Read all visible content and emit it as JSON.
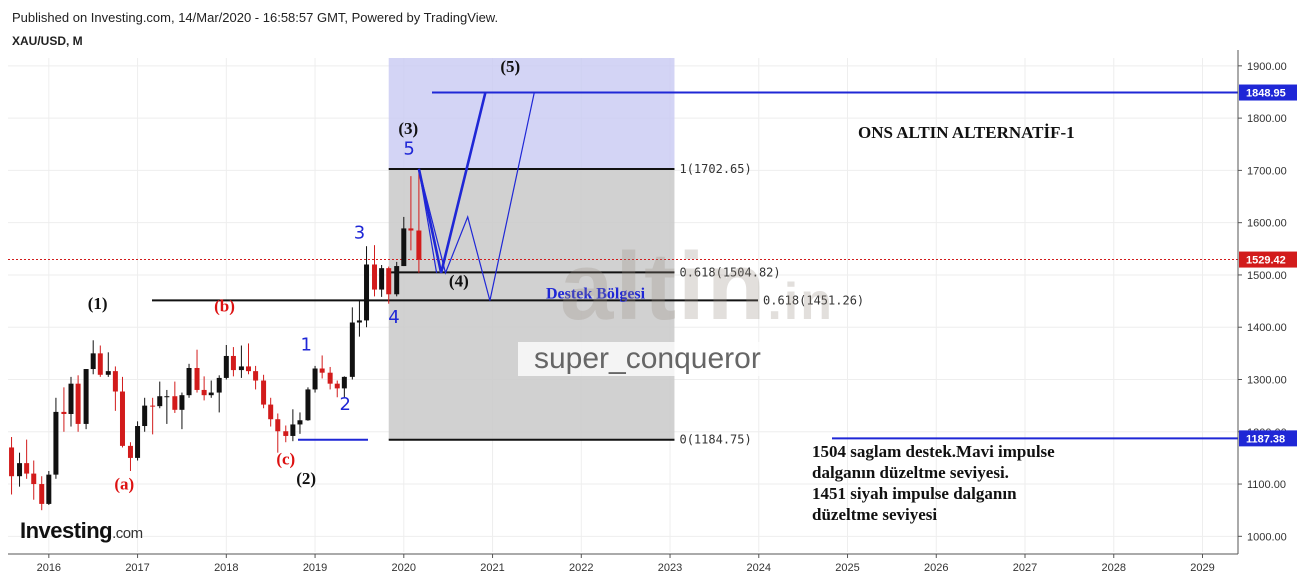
{
  "header": {
    "published": "Published on Investing.com, 14/Mar/2020 - 16:58:57 GMT, Powered by TradingView.",
    "symbol": "XAU/USD, M"
  },
  "brand": {
    "name": "Investing",
    "domain": ".com"
  },
  "watermark": {
    "user": "super_conqueror",
    "logo": "altin",
    "logo_suffix": ".in"
  },
  "annotations": {
    "title": "ONS ALTIN ALTERNATİF-1",
    "zone_label": "Destek Bölgesi",
    "note": [
      "1504 saglam destek.Mavi impulse",
      "dalganın düzeltme seviyesi.",
      "1451 siyah impulse dalganın",
      "düzeltme seviyesi"
    ],
    "waves": [
      {
        "label": "(1)",
        "date": 2016.55,
        "price": 1435,
        "color": "#111111"
      },
      {
        "label": "(2)",
        "date": 2018.9,
        "price": 1100,
        "color": "#111111"
      },
      {
        "label": "(3)",
        "date": 2020.05,
        "price": 1770,
        "color": "#111111"
      },
      {
        "label": "(4)",
        "date": 2020.62,
        "price": 1478,
        "color": "#111111"
      },
      {
        "label": "(5)",
        "date": 2021.2,
        "price": 1888,
        "color": "#111111"
      },
      {
        "label": "(a)",
        "date": 2016.85,
        "price": 1090,
        "color": "#dd1111"
      },
      {
        "label": "(b)",
        "date": 2017.98,
        "price": 1430,
        "color": "#dd1111"
      },
      {
        "label": "(c)",
        "date": 2018.67,
        "price": 1137,
        "color": "#dd1111"
      },
      {
        "label": "1",
        "date": 2018.9,
        "price": 1355,
        "color": "#1f27d6"
      },
      {
        "label": "2",
        "date": 2019.34,
        "price": 1242,
        "color": "#1f27d6"
      },
      {
        "label": "3",
        "date": 2019.5,
        "price": 1570,
        "color": "#1f27d6"
      },
      {
        "label": "4",
        "date": 2019.89,
        "price": 1408,
        "color": "#1f27d6"
      },
      {
        "label": "5",
        "date": 2020.06,
        "price": 1730,
        "color": "#1f27d6"
      }
    ]
  },
  "chart_data": {
    "type": "candlestick",
    "instrument": "XAU/USD",
    "interval": "M",
    "x_ticks": [
      "2016",
      "2017",
      "2018",
      "2019",
      "2020",
      "2021",
      "2022",
      "2023",
      "2024",
      "2025",
      "2026",
      "2027",
      "2028",
      "2029"
    ],
    "y_ticks": [
      "1000.00",
      "1100.00",
      "1200.00",
      "1300.00",
      "1400.00",
      "1500.00",
      "1600.00",
      "1700.00",
      "1800.00",
      "1900.00"
    ],
    "xlim": [
      2015.54,
      2029.4
    ],
    "ylim": [
      970,
      1915
    ],
    "current_price": "1529.42",
    "target_price": "1848.95",
    "support_price": "1187.38",
    "fib_levels": [
      {
        "label": "1(1702.65)",
        "value": 1702.65
      },
      {
        "label": "0.618(1504.82)",
        "value": 1504.82
      },
      {
        "label": "0.618(1451.26)",
        "value": 1451.26
      },
      {
        "label": "0(1184.75)",
        "value": 1184.75
      }
    ],
    "fib_zone": {
      "x_start": 2019.83,
      "x_end": 2023.05,
      "low": 1184.75,
      "high": 1702.65
    },
    "target_zone": {
      "x_start": 2019.83,
      "x_end": 2023.05,
      "low": 1702.65,
      "high": 1915
    },
    "colors": {
      "up": "#111111",
      "down": "#d21b1b",
      "wave_blue": "#1f27d6",
      "fib_zone": "#c9c9c9",
      "target_zone": "#c8c9f2",
      "price_line": "#d21b1b",
      "level_line": "#1f27d6"
    },
    "candles": [
      {
        "t": 2015.58,
        "o": 1170,
        "h": 1190,
        "l": 1080,
        "c": 1115
      },
      {
        "t": 2015.67,
        "o": 1115,
        "h": 1160,
        "l": 1095,
        "c": 1140
      },
      {
        "t": 2015.75,
        "o": 1140,
        "h": 1185,
        "l": 1110,
        "c": 1120
      },
      {
        "t": 2015.83,
        "o": 1120,
        "h": 1145,
        "l": 1070,
        "c": 1100
      },
      {
        "t": 2015.92,
        "o": 1100,
        "h": 1115,
        "l": 1050,
        "c": 1062
      },
      {
        "t": 2016.0,
        "o": 1062,
        "h": 1125,
        "l": 1060,
        "c": 1118
      },
      {
        "t": 2016.08,
        "o": 1118,
        "h": 1265,
        "l": 1110,
        "c": 1238
      },
      {
        "t": 2016.17,
        "o": 1238,
        "h": 1285,
        "l": 1200,
        "c": 1234
      },
      {
        "t": 2016.25,
        "o": 1234,
        "h": 1305,
        "l": 1210,
        "c": 1292
      },
      {
        "t": 2016.33,
        "o": 1292,
        "h": 1308,
        "l": 1200,
        "c": 1215
      },
      {
        "t": 2016.42,
        "o": 1215,
        "h": 1320,
        "l": 1205,
        "c": 1320
      },
      {
        "t": 2016.5,
        "o": 1320,
        "h": 1375,
        "l": 1310,
        "c": 1350
      },
      {
        "t": 2016.58,
        "o": 1350,
        "h": 1365,
        "l": 1305,
        "c": 1309
      },
      {
        "t": 2016.67,
        "o": 1309,
        "h": 1352,
        "l": 1305,
        "c": 1316
      },
      {
        "t": 2016.75,
        "o": 1316,
        "h": 1325,
        "l": 1240,
        "c": 1277
      },
      {
        "t": 2016.83,
        "o": 1277,
        "h": 1305,
        "l": 1170,
        "c": 1173
      },
      {
        "t": 2016.92,
        "o": 1173,
        "h": 1180,
        "l": 1125,
        "c": 1150
      },
      {
        "t": 2017.0,
        "o": 1150,
        "h": 1220,
        "l": 1145,
        "c": 1211
      },
      {
        "t": 2017.08,
        "o": 1211,
        "h": 1265,
        "l": 1200,
        "c": 1250
      },
      {
        "t": 2017.17,
        "o": 1250,
        "h": 1265,
        "l": 1195,
        "c": 1249
      },
      {
        "t": 2017.25,
        "o": 1249,
        "h": 1296,
        "l": 1245,
        "c": 1268
      },
      {
        "t": 2017.33,
        "o": 1268,
        "h": 1280,
        "l": 1215,
        "c": 1268
      },
      {
        "t": 2017.42,
        "o": 1268,
        "h": 1296,
        "l": 1236,
        "c": 1242
      },
      {
        "t": 2017.5,
        "o": 1242,
        "h": 1275,
        "l": 1205,
        "c": 1270
      },
      {
        "t": 2017.58,
        "o": 1270,
        "h": 1330,
        "l": 1265,
        "c": 1322
      },
      {
        "t": 2017.67,
        "o": 1322,
        "h": 1357,
        "l": 1275,
        "c": 1280
      },
      {
        "t": 2017.75,
        "o": 1280,
        "h": 1306,
        "l": 1260,
        "c": 1270
      },
      {
        "t": 2017.83,
        "o": 1270,
        "h": 1298,
        "l": 1265,
        "c": 1275
      },
      {
        "t": 2017.92,
        "o": 1275,
        "h": 1308,
        "l": 1237,
        "c": 1303
      },
      {
        "t": 2018.0,
        "o": 1303,
        "h": 1366,
        "l": 1300,
        "c": 1345
      },
      {
        "t": 2018.08,
        "o": 1345,
        "h": 1362,
        "l": 1306,
        "c": 1318
      },
      {
        "t": 2018.17,
        "o": 1318,
        "h": 1365,
        "l": 1303,
        "c": 1325
      },
      {
        "t": 2018.25,
        "o": 1325,
        "h": 1369,
        "l": 1310,
        "c": 1316
      },
      {
        "t": 2018.33,
        "o": 1316,
        "h": 1326,
        "l": 1281,
        "c": 1298
      },
      {
        "t": 2018.42,
        "o": 1298,
        "h": 1309,
        "l": 1245,
        "c": 1252
      },
      {
        "t": 2018.5,
        "o": 1252,
        "h": 1265,
        "l": 1210,
        "c": 1224
      },
      {
        "t": 2018.58,
        "o": 1224,
        "h": 1235,
        "l": 1160,
        "c": 1201
      },
      {
        "t": 2018.67,
        "o": 1201,
        "h": 1212,
        "l": 1180,
        "c": 1192
      },
      {
        "t": 2018.75,
        "o": 1192,
        "h": 1243,
        "l": 1182,
        "c": 1214
      },
      {
        "t": 2018.83,
        "o": 1214,
        "h": 1237,
        "l": 1196,
        "c": 1222
      },
      {
        "t": 2018.92,
        "o": 1222,
        "h": 1285,
        "l": 1221,
        "c": 1281
      },
      {
        "t": 2019.0,
        "o": 1281,
        "h": 1326,
        "l": 1275,
        "c": 1321
      },
      {
        "t": 2019.08,
        "o": 1321,
        "h": 1346,
        "l": 1302,
        "c": 1313
      },
      {
        "t": 2019.17,
        "o": 1313,
        "h": 1324,
        "l": 1281,
        "c": 1292
      },
      {
        "t": 2019.25,
        "o": 1292,
        "h": 1298,
        "l": 1266,
        "c": 1283
      },
      {
        "t": 2019.33,
        "o": 1283,
        "h": 1306,
        "l": 1266,
        "c": 1305
      },
      {
        "t": 2019.42,
        "o": 1305,
        "h": 1438,
        "l": 1300,
        "c": 1409
      },
      {
        "t": 2019.5,
        "o": 1409,
        "h": 1452,
        "l": 1382,
        "c": 1413
      },
      {
        "t": 2019.58,
        "o": 1413,
        "h": 1555,
        "l": 1400,
        "c": 1520
      },
      {
        "t": 2019.67,
        "o": 1520,
        "h": 1557,
        "l": 1459,
        "c": 1472
      },
      {
        "t": 2019.75,
        "o": 1472,
        "h": 1519,
        "l": 1458,
        "c": 1513
      },
      {
        "t": 2019.83,
        "o": 1513,
        "h": 1516,
        "l": 1445,
        "c": 1463
      },
      {
        "t": 2019.92,
        "o": 1463,
        "h": 1525,
        "l": 1459,
        "c": 1517
      },
      {
        "t": 2020.0,
        "o": 1517,
        "h": 1611,
        "l": 1517,
        "c": 1589
      },
      {
        "t": 2020.08,
        "o": 1589,
        "h": 1689,
        "l": 1547,
        "c": 1585
      },
      {
        "t": 2020.17,
        "o": 1585,
        "h": 1703,
        "l": 1504,
        "c": 1529
      }
    ],
    "wave_paths": [
      {
        "name": "projection-bold",
        "width": 2.6,
        "points": [
          [
            2020.17,
            1703
          ],
          [
            2020.42,
            1504
          ],
          [
            2020.92,
            1849
          ]
        ]
      },
      {
        "name": "projection-thin-1",
        "width": 1.2,
        "points": [
          [
            2020.17,
            1703
          ],
          [
            2020.47,
            1504
          ],
          [
            2020.72,
            1611
          ],
          [
            2020.97,
            1451
          ],
          [
            2021.47,
            1849
          ]
        ]
      },
      {
        "name": "projection-thin-2",
        "width": 1.2,
        "points": [
          [
            2020.17,
            1703
          ],
          [
            2020.37,
            1504
          ]
        ]
      }
    ]
  }
}
